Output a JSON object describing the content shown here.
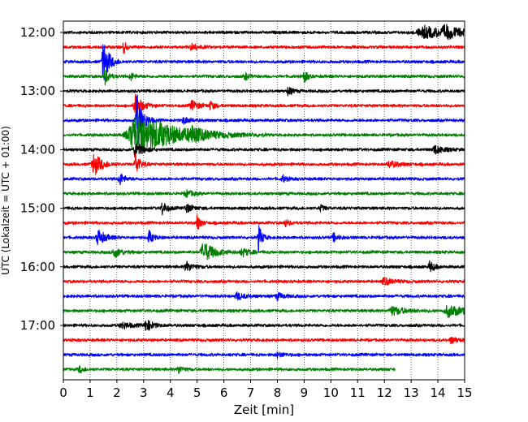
{
  "chart_data": {
    "type": "line",
    "title": "",
    "xlabel": "Zeit  [min]",
    "ylabel": "UTC (Lokalzeit = UTC + 01:00)",
    "xlim": [
      0,
      15
    ],
    "x_ticks": [
      0,
      1,
      2,
      3,
      4,
      5,
      6,
      7,
      8,
      9,
      10,
      11,
      12,
      13,
      14,
      15
    ],
    "y_ticks": [
      "12:00",
      "13:00",
      "14:00",
      "15:00",
      "16:00",
      "17:00"
    ],
    "grid": "vertical dotted",
    "trace_interval_minutes": 15,
    "start_time": "12:00",
    "trace_colors": [
      "#000000",
      "#ff0000",
      "#0000ff",
      "#008000"
    ],
    "traces": [
      {
        "label": "12:00",
        "color": "#000000",
        "end_minute": 15,
        "events": [
          {
            "t": 13.5,
            "amp": 7,
            "dur": 1.2
          },
          {
            "t": 14.3,
            "amp": 6,
            "dur": 0.6
          }
        ]
      },
      {
        "label": "12:15",
        "color": "#ff0000",
        "end_minute": 15,
        "events": [
          {
            "t": 2.25,
            "amp": 10,
            "dur": 0.1
          },
          {
            "t": 4.8,
            "amp": 4,
            "dur": 0.3
          }
        ]
      },
      {
        "label": "12:30",
        "color": "#0000ff",
        "end_minute": 15,
        "events": [
          {
            "t": 1.5,
            "amp": 28,
            "dur": 0.25
          }
        ]
      },
      {
        "label": "12:45",
        "color": "#008000",
        "end_minute": 15,
        "events": [
          {
            "t": 1.55,
            "amp": 10,
            "dur": 0.2
          },
          {
            "t": 2.5,
            "amp": 6,
            "dur": 0.15
          },
          {
            "t": 9.0,
            "amp": 8,
            "dur": 0.15
          },
          {
            "t": 6.8,
            "amp": 4,
            "dur": 0.2
          }
        ]
      },
      {
        "label": "13:00",
        "color": "#000000",
        "end_minute": 15,
        "events": [
          {
            "t": 8.4,
            "amp": 5,
            "dur": 0.2
          }
        ]
      },
      {
        "label": "13:15",
        "color": "#ff0000",
        "end_minute": 15,
        "events": [
          {
            "t": 2.7,
            "amp": 14,
            "dur": 0.3
          },
          {
            "t": 4.8,
            "amp": 6,
            "dur": 0.3
          },
          {
            "t": 5.5,
            "amp": 5,
            "dur": 0.2
          }
        ]
      },
      {
        "label": "13:30",
        "color": "#0000ff",
        "end_minute": 15,
        "events": [
          {
            "t": 2.75,
            "amp": 34,
            "dur": 0.25
          },
          {
            "t": 4.5,
            "amp": 4,
            "dur": 0.3
          }
        ]
      },
      {
        "label": "13:45",
        "color": "#008000",
        "end_minute": 15,
        "events": [
          {
            "t": 2.8,
            "amp": 28,
            "dur": 1.6
          },
          {
            "t": 4.8,
            "amp": 6,
            "dur": 0.5
          }
        ]
      },
      {
        "label": "14:00",
        "color": "#000000",
        "end_minute": 15,
        "events": [
          {
            "t": 2.7,
            "amp": 10,
            "dur": 0.3
          },
          {
            "t": 13.9,
            "amp": 5,
            "dur": 0.4
          }
        ]
      },
      {
        "label": "14:15",
        "color": "#ff0000",
        "end_minute": 15,
        "events": [
          {
            "t": 1.15,
            "amp": 14,
            "dur": 0.35
          },
          {
            "t": 2.7,
            "amp": 14,
            "dur": 0.2
          },
          {
            "t": 12.2,
            "amp": 4,
            "dur": 0.4
          }
        ]
      },
      {
        "label": "14:30",
        "color": "#0000ff",
        "end_minute": 15,
        "events": [
          {
            "t": 2.1,
            "amp": 8,
            "dur": 0.2
          },
          {
            "t": 8.2,
            "amp": 4,
            "dur": 0.2
          }
        ]
      },
      {
        "label": "14:45",
        "color": "#008000",
        "end_minute": 15,
        "events": [
          {
            "t": 4.6,
            "amp": 4,
            "dur": 0.3
          }
        ]
      },
      {
        "label": "15:00",
        "color": "#000000",
        "end_minute": 15,
        "events": [
          {
            "t": 3.7,
            "amp": 8,
            "dur": 0.2
          },
          {
            "t": 4.6,
            "amp": 5,
            "dur": 0.3
          },
          {
            "t": 9.6,
            "amp": 4,
            "dur": 0.2
          }
        ]
      },
      {
        "label": "15:15",
        "color": "#ff0000",
        "end_minute": 15,
        "events": [
          {
            "t": 5.0,
            "amp": 10,
            "dur": 0.15
          },
          {
            "t": 8.3,
            "amp": 4,
            "dur": 0.2
          }
        ]
      },
      {
        "label": "15:30",
        "color": "#0000ff",
        "end_minute": 15,
        "events": [
          {
            "t": 1.3,
            "amp": 10,
            "dur": 0.3
          },
          {
            "t": 3.2,
            "amp": 8,
            "dur": 0.2
          },
          {
            "t": 7.3,
            "amp": 16,
            "dur": 0.15
          },
          {
            "t": 10.1,
            "amp": 5,
            "dur": 0.2
          }
        ]
      },
      {
        "label": "15:45",
        "color": "#008000",
        "end_minute": 15,
        "events": [
          {
            "t": 1.9,
            "amp": 7,
            "dur": 0.3
          },
          {
            "t": 5.25,
            "amp": 12,
            "dur": 0.5
          },
          {
            "t": 6.7,
            "amp": 5,
            "dur": 0.3
          }
        ]
      },
      {
        "label": "16:00",
        "color": "#000000",
        "end_minute": 15,
        "events": [
          {
            "t": 4.6,
            "amp": 6,
            "dur": 0.3
          },
          {
            "t": 13.7,
            "amp": 7,
            "dur": 0.2
          }
        ]
      },
      {
        "label": "16:15",
        "color": "#ff0000",
        "end_minute": 15,
        "events": [
          {
            "t": 12.0,
            "amp": 4,
            "dur": 0.4
          }
        ]
      },
      {
        "label": "16:30",
        "color": "#0000ff",
        "end_minute": 15,
        "events": [
          {
            "t": 6.5,
            "amp": 4,
            "dur": 0.4
          },
          {
            "t": 8.0,
            "amp": 4,
            "dur": 0.3
          }
        ]
      },
      {
        "label": "16:45",
        "color": "#008000",
        "end_minute": 15,
        "events": [
          {
            "t": 12.3,
            "amp": 5,
            "dur": 0.6
          },
          {
            "t": 14.4,
            "amp": 7,
            "dur": 0.7
          }
        ]
      },
      {
        "label": "17:00",
        "color": "#000000",
        "end_minute": 15,
        "events": [
          {
            "t": 3.1,
            "amp": 7,
            "dur": 0.3
          },
          {
            "t": 2.2,
            "amp": 4,
            "dur": 0.4
          }
        ]
      },
      {
        "label": "17:15",
        "color": "#ff0000",
        "end_minute": 15,
        "events": [
          {
            "t": 14.5,
            "amp": 4,
            "dur": 0.3
          }
        ]
      },
      {
        "label": "17:30",
        "color": "#0000ff",
        "end_minute": 15,
        "events": [
          {
            "t": 8.0,
            "amp": 3,
            "dur": 0.3
          }
        ]
      },
      {
        "label": "17:45",
        "color": "#008000",
        "end_minute": 12.4,
        "events": [
          {
            "t": 4.3,
            "amp": 5,
            "dur": 0.2
          },
          {
            "t": 0.6,
            "amp": 4,
            "dur": 0.2
          }
        ]
      }
    ]
  }
}
